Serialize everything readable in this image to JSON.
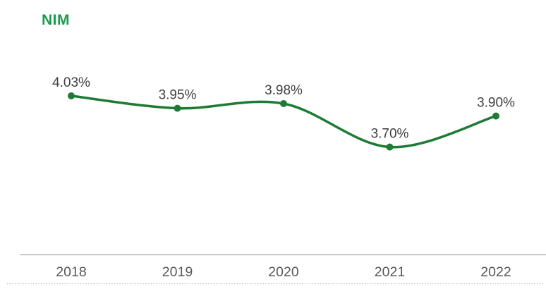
{
  "title": {
    "label": "NIM",
    "color": "#189C4C"
  },
  "chart_data": {
    "type": "line",
    "title": "NIM",
    "categories": [
      "2018",
      "2019",
      "2020",
      "2021",
      "2022"
    ],
    "series": [
      {
        "name": "NIM",
        "values": [
          4.03,
          3.95,
          3.98,
          3.7,
          3.9
        ]
      }
    ],
    "data_labels": [
      "4.03%",
      "3.95%",
      "3.98%",
      "3.70%",
      "3.90%"
    ],
    "xlabel": "",
    "ylabel": "",
    "ylim": [
      3.3,
      4.2
    ],
    "grid": false,
    "legend_position": "none",
    "smooth_line": true,
    "line_color": "#1E7B34",
    "marker_color": "#1E7B34",
    "data_label_color": "#404040",
    "tick_label_color": "#595959",
    "axis_line_color": "#A6A6A6",
    "dotted_rule_color": "#BFBFBF"
  }
}
